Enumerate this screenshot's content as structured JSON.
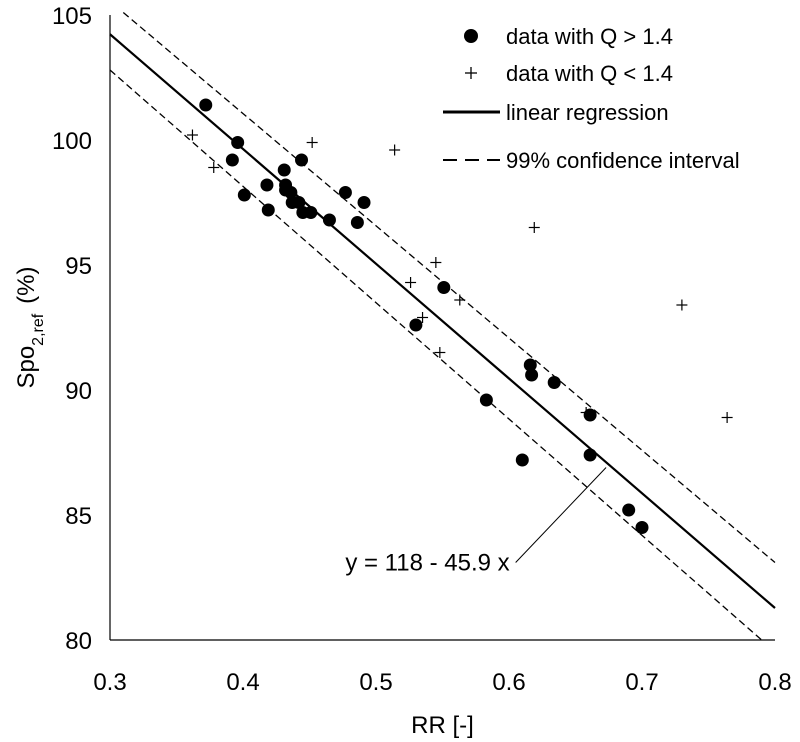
{
  "chart_data": {
    "type": "scatter",
    "title": "",
    "xlabel": "RR [-]",
    "ylabel": {
      "main": "Spo",
      "subscript": "2,ref",
      "unit": "(%)"
    },
    "xlim": [
      0.3,
      0.8
    ],
    "ylim": [
      80,
      105
    ],
    "xticks": [
      "0.3",
      "0.4",
      "0.5",
      "0.6",
      "0.7",
      "0.8"
    ],
    "yticks": [
      "80",
      "85",
      "90",
      "95",
      "100",
      "105"
    ],
    "series": [
      {
        "name": "data with Q > 1.4",
        "marker": "filled-circle",
        "points": [
          [
            0.372,
            101.4
          ],
          [
            0.396,
            99.9
          ],
          [
            0.392,
            99.2
          ],
          [
            0.401,
            97.8
          ],
          [
            0.418,
            98.2
          ],
          [
            0.419,
            97.2
          ],
          [
            0.431,
            98.8
          ],
          [
            0.444,
            99.2
          ],
          [
            0.432,
            98.2
          ],
          [
            0.436,
            97.9
          ],
          [
            0.432,
            98.0
          ],
          [
            0.437,
            97.5
          ],
          [
            0.442,
            97.5
          ],
          [
            0.445,
            97.1
          ],
          [
            0.451,
            97.1
          ],
          [
            0.465,
            96.8
          ],
          [
            0.477,
            97.9
          ],
          [
            0.486,
            96.7
          ],
          [
            0.491,
            97.5
          ],
          [
            0.53,
            92.6
          ],
          [
            0.551,
            94.1
          ],
          [
            0.583,
            89.6
          ],
          [
            0.61,
            87.2
          ],
          [
            0.616,
            91.0
          ],
          [
            0.617,
            90.6
          ],
          [
            0.634,
            90.3
          ],
          [
            0.661,
            89.0
          ],
          [
            0.661,
            87.4
          ],
          [
            0.69,
            85.2
          ],
          [
            0.7,
            84.5
          ]
        ]
      },
      {
        "name": "data with Q < 1.4",
        "marker": "plus",
        "points": [
          [
            0.362,
            100.2
          ],
          [
            0.378,
            98.9
          ],
          [
            0.452,
            99.9
          ],
          [
            0.514,
            99.6
          ],
          [
            0.526,
            94.3
          ],
          [
            0.535,
            92.9
          ],
          [
            0.545,
            95.1
          ],
          [
            0.548,
            91.5
          ],
          [
            0.563,
            93.6
          ],
          [
            0.619,
            96.5
          ],
          [
            0.658,
            89.1
          ],
          [
            0.73,
            93.4
          ],
          [
            0.764,
            88.9
          ]
        ]
      }
    ],
    "regression": {
      "name": "linear regression",
      "intercept": 118,
      "slope": -45.9,
      "equation_label": "y = 118 - 45.9 x",
      "x_range": [
        0.3,
        0.8
      ]
    },
    "confidence_interval": {
      "name": "99% confidence interval",
      "upper": {
        "x": [
          0.31,
          0.8
        ],
        "y": [
          105.1,
          83.1
        ]
      },
      "lower": {
        "x": [
          0.3,
          0.79
        ],
        "y": [
          102.8,
          80.0
        ]
      }
    },
    "annotation_pointer": {
      "from": [
        0.605,
        83.1
      ],
      "to": [
        0.673,
        86.9
      ]
    },
    "legend": {
      "position": "top-right",
      "entries": [
        "data with Q > 1.4",
        "data with Q < 1.4",
        "linear regression",
        "99% confidence interval"
      ]
    },
    "grid": false
  }
}
